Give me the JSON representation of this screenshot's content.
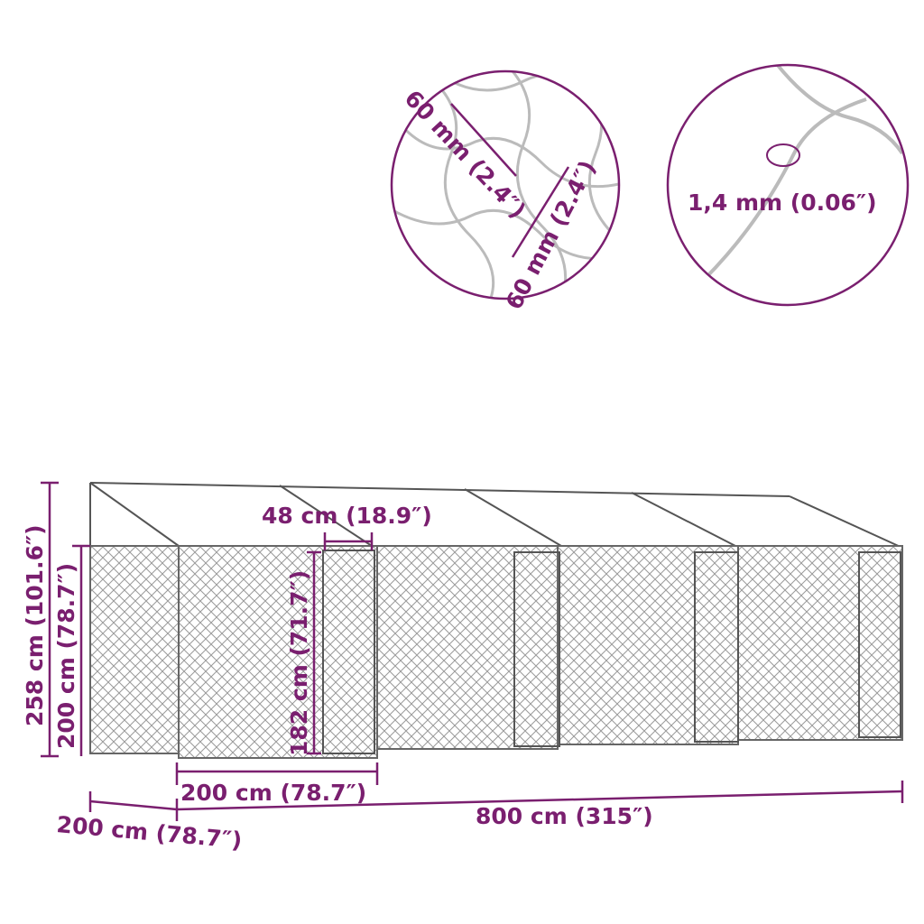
{
  "colors": {
    "dimension": "#7a1f6f",
    "mesh": "#8a8a8a",
    "frame": "#555555"
  },
  "detail_mesh": {
    "width_label": "60 mm (2.4″)",
    "height_label": "60 mm (2.4″)"
  },
  "detail_wire": {
    "diameter_label": "1,4 mm (0.06″)"
  },
  "dimensions": {
    "total_height": "258 cm (101.6″)",
    "wall_height": "200 cm (78.7″)",
    "door_height": "182 cm (71.7″)",
    "door_width": "48 cm (18.9″)",
    "section_width": "200 cm (78.7″)",
    "total_length": "800 cm (315″)",
    "depth": "200 cm (78.7″)"
  }
}
